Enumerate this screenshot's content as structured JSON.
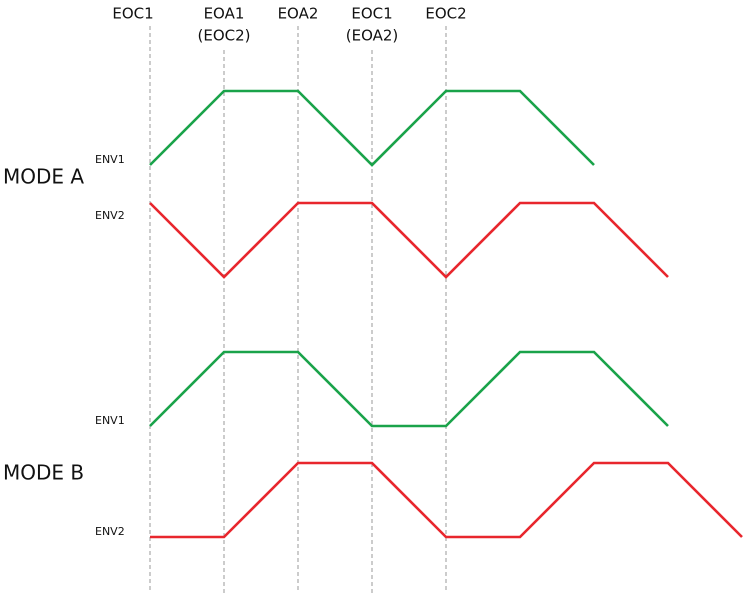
{
  "markers": [
    {
      "label": "EOC1"
    },
    {
      "label": "EOA1",
      "sublabel": "(EOC2)"
    },
    {
      "label": "EOA2"
    },
    {
      "label": "EOC1",
      "sublabel": "(EOA2)"
    },
    {
      "label": "EOC2"
    }
  ],
  "modes": [
    {
      "label": "MODE A",
      "envelopes": [
        "ENV1",
        "ENV2"
      ]
    },
    {
      "label": "MODE B",
      "envelopes": [
        "ENV1",
        "ENV2"
      ]
    }
  ]
}
